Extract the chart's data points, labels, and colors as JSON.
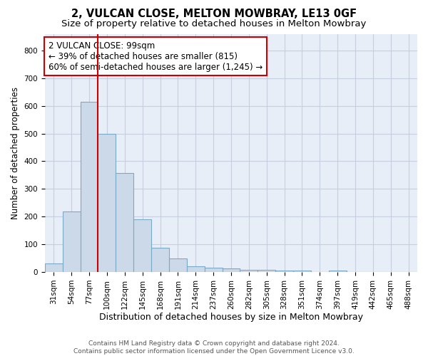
{
  "title": "2, VULCAN CLOSE, MELTON MOWBRAY, LE13 0GF",
  "subtitle": "Size of property relative to detached houses in Melton Mowbray",
  "xlabel": "Distribution of detached houses by size in Melton Mowbray",
  "ylabel": "Number of detached properties",
  "bar_color": "#ccd9e8",
  "bar_edge_color": "#7aaac8",
  "grid_color": "#c5cfe0",
  "background_color": "#e8eef8",
  "vline_color": "#cc0000",
  "vline_x_index": 3,
  "annotation_box_text": "2 VULCAN CLOSE: 99sqm\n← 39% of detached houses are smaller (815)\n60% of semi-detached houses are larger (1,245) →",
  "annotation_box_color": "#ffffff",
  "annotation_box_edge_color": "#cc0000",
  "categories": [
    "31sqm",
    "54sqm",
    "77sqm",
    "100sqm",
    "122sqm",
    "145sqm",
    "168sqm",
    "191sqm",
    "214sqm",
    "237sqm",
    "260sqm",
    "282sqm",
    "305sqm",
    "328sqm",
    "351sqm",
    "374sqm",
    "397sqm",
    "419sqm",
    "442sqm",
    "465sqm",
    "488sqm"
  ],
  "values": [
    30,
    220,
    615,
    500,
    358,
    190,
    88,
    50,
    22,
    15,
    12,
    7,
    7,
    5,
    6,
    0,
    5,
    0,
    0,
    0,
    0
  ],
  "ylim": [
    0,
    860
  ],
  "yticks": [
    0,
    100,
    200,
    300,
    400,
    500,
    600,
    700,
    800
  ],
  "footer_line1": "Contains HM Land Registry data © Crown copyright and database right 2024.",
  "footer_line2": "Contains public sector information licensed under the Open Government Licence v3.0.",
  "title_fontsize": 10.5,
  "subtitle_fontsize": 9.5,
  "xlabel_fontsize": 9,
  "ylabel_fontsize": 8.5,
  "tick_fontsize": 7.5,
  "footer_fontsize": 6.5,
  "annot_fontsize": 8.5
}
